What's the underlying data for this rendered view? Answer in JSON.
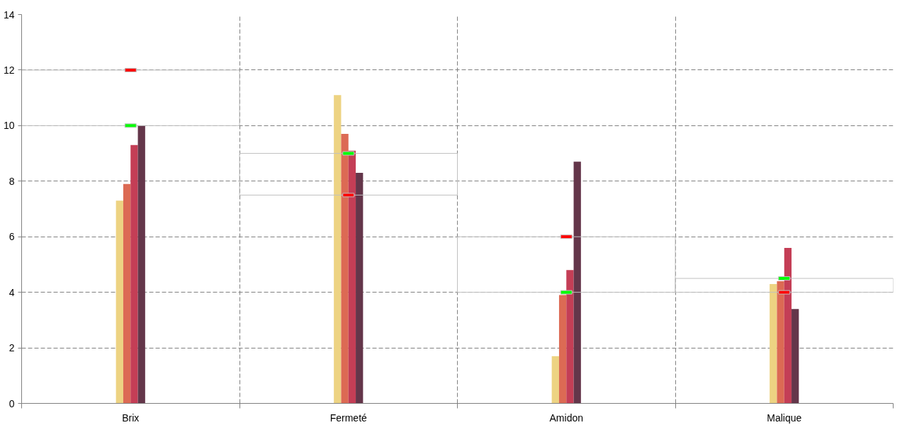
{
  "chart_data": {
    "type": "bar",
    "categories": [
      "Brix",
      "Fermeté",
      "Amidon",
      "Malique"
    ],
    "series": [
      {
        "color": "#edd382",
        "values": [
          7.3,
          11.1,
          1.7,
          4.3
        ]
      },
      {
        "color": "#dc6a54",
        "values": [
          7.9,
          9.7,
          3.9,
          4.4
        ]
      },
      {
        "color": "#c43e56",
        "values": [
          9.3,
          9.1,
          4.8,
          5.6
        ]
      },
      {
        "color": "#64364a",
        "values": [
          10.0,
          8.3,
          8.7,
          3.4
        ]
      },
      {
        "type": "bar",
        "color": "#c0c0c0",
        "base": [
          10,
          7.5,
          4,
          4
        ],
        "values": [
          2,
          1.5,
          2,
          0.5
        ]
      },
      {
        "type": "scatter",
        "color": "#00ff00",
        "values": [
          10,
          9,
          4,
          4.5
        ]
      },
      {
        "type": "scatter",
        "color": "#ff0000",
        "values": [
          12,
          7.5,
          6,
          4
        ]
      }
    ],
    "ylim": [
      0,
      14
    ],
    "yticks": [
      0,
      2,
      4,
      6,
      8,
      10,
      12,
      14
    ],
    "grid": true,
    "marker": "square"
  }
}
